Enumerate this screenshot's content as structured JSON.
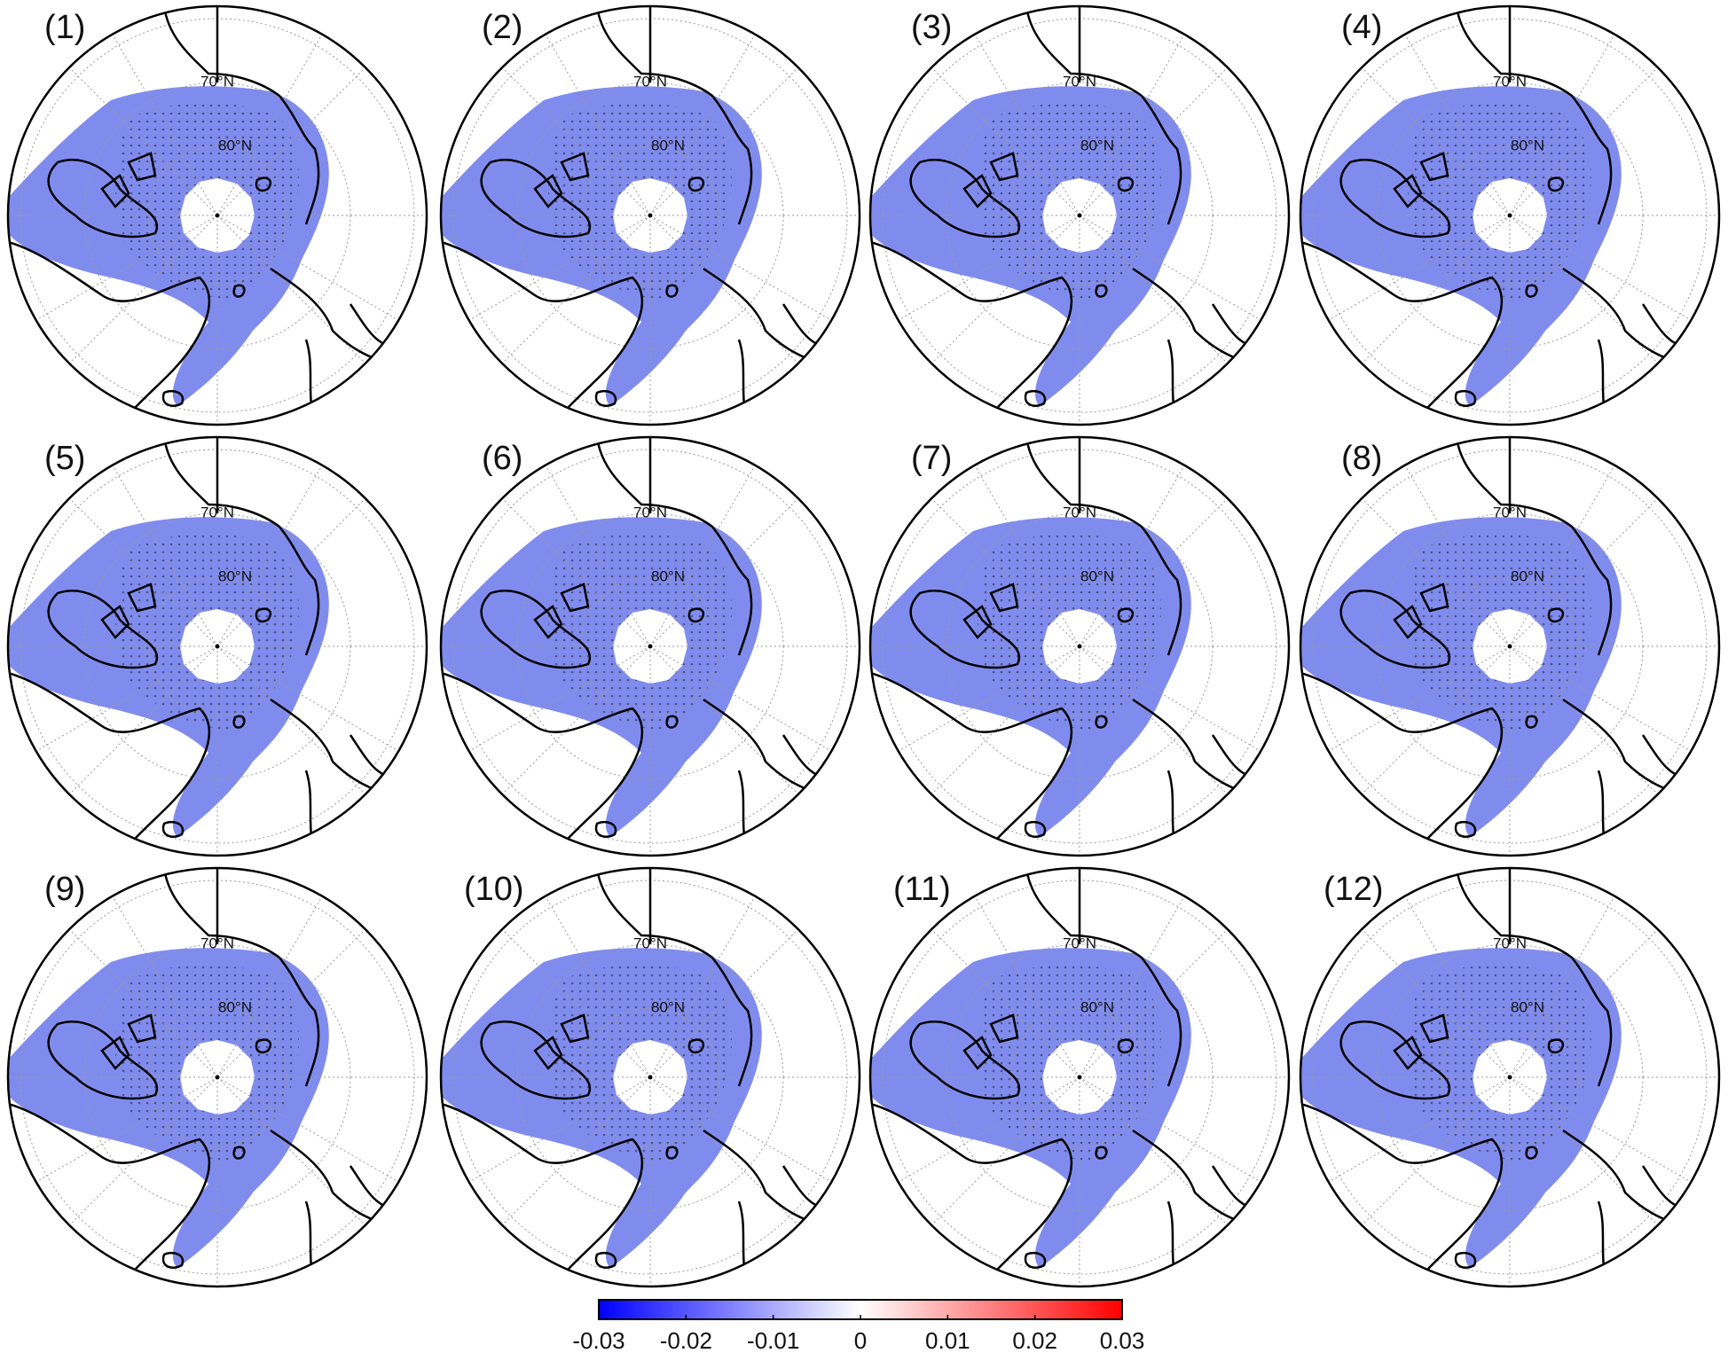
{
  "panels": [
    {
      "label": "(1)",
      "lat_labels": [
        "70°N",
        "80°N"
      ]
    },
    {
      "label": "(2)",
      "lat_labels": [
        "70°N",
        "80°N"
      ]
    },
    {
      "label": "(3)",
      "lat_labels": [
        "70°N",
        "80°N"
      ]
    },
    {
      "label": "(4)",
      "lat_labels": [
        "70°N",
        "80°N"
      ]
    },
    {
      "label": "(5)",
      "lat_labels": [
        "70°N",
        "80°N"
      ]
    },
    {
      "label": "(6)",
      "lat_labels": [
        "70°N",
        "80°N"
      ]
    },
    {
      "label": "(7)",
      "lat_labels": [
        "70°N",
        "80°N"
      ]
    },
    {
      "label": "(8)",
      "lat_labels": [
        "70°N",
        "80°N"
      ]
    },
    {
      "label": "(9)",
      "lat_labels": [
        "70°N",
        "80°N"
      ]
    },
    {
      "label": "(10)",
      "lat_labels": [
        "70°N",
        "80°N"
      ]
    },
    {
      "label": "(11)",
      "lat_labels": [
        "70°N",
        "80°N"
      ]
    },
    {
      "label": "(12)",
      "lat_labels": [
        "70°N",
        "80°N"
      ]
    }
  ],
  "colorbar": {
    "lim": [
      -0.03,
      0.03
    ],
    "ticks": [
      -0.03,
      -0.02,
      -0.01,
      0,
      0.01,
      0.02,
      0.03
    ],
    "colors": [
      "#0000ff",
      "#ffffff",
      "#ff0000"
    ]
  }
}
